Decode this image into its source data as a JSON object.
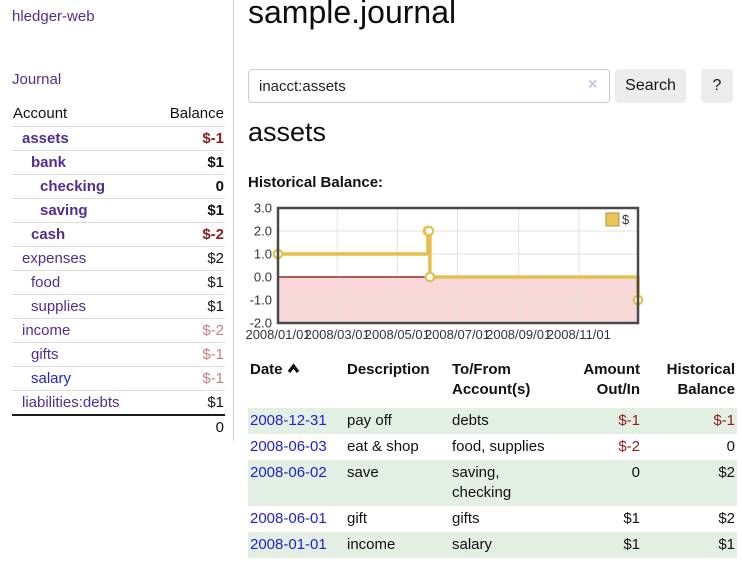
{
  "sidebar": {
    "app_title": "hledger-web",
    "journal_link": "Journal",
    "tree": {
      "account_header": "Account",
      "balance_header": "Balance",
      "accounts": [
        {
          "name": "assets",
          "indent": 1,
          "bold": true,
          "balance": "$-1",
          "balance_color": "neg"
        },
        {
          "name": "bank",
          "indent": 2,
          "bold": true,
          "balance": "$1",
          "balance_color": "pos"
        },
        {
          "name": "checking",
          "indent": 3,
          "bold": true,
          "balance": "0",
          "balance_color": "pos"
        },
        {
          "name": "saving",
          "indent": 3,
          "bold": true,
          "balance": "$1",
          "balance_color": "pos"
        },
        {
          "name": "cash",
          "indent": 2,
          "bold": true,
          "balance": "$-2",
          "balance_color": "neg"
        },
        {
          "name": "expenses",
          "indent": 1,
          "bold": false,
          "balance": "$2",
          "balance_color": "pos"
        },
        {
          "name": "food",
          "indent": 2,
          "bold": false,
          "balance": "$1",
          "balance_color": "pos"
        },
        {
          "name": "supplies",
          "indent": 2,
          "bold": false,
          "balance": "$1",
          "balance_color": "pos"
        },
        {
          "name": "income",
          "indent": 1,
          "bold": false,
          "balance": "$-2",
          "balance_color": "neg_light"
        },
        {
          "name": "gifts",
          "indent": 2,
          "bold": false,
          "balance": "$-1",
          "balance_color": "neg_light"
        },
        {
          "name": "salary",
          "indent": 2,
          "bold": false,
          "balance": "$-1",
          "balance_color": "neg_light",
          "link_color": "blue"
        },
        {
          "name": "liabilities:debts",
          "indent": 1,
          "bold": false,
          "balance": "$1",
          "balance_color": "pos"
        }
      ],
      "total": "0"
    }
  },
  "main": {
    "title": "sample.journal",
    "search": {
      "value": "inacct:assets",
      "clear_icon": "×",
      "search_button": "Search",
      "help_button": "?"
    },
    "account_heading": "assets",
    "chart_label": "Historical Balance:"
  },
  "chart_data": {
    "type": "line",
    "title": "Historical Balance",
    "step": true,
    "legend": [
      {
        "label": "$",
        "color": "#e9c659",
        "position": "top-right"
      }
    ],
    "grid": true,
    "ylim": [
      -2,
      3
    ],
    "y_ticks": [
      "3.0",
      "2.0",
      "1.0",
      "0.0",
      "-1.0",
      "-2.0"
    ],
    "xlim_days": [
      0,
      365
    ],
    "x_ticks": [
      {
        "label": "2008/01/01",
        "day": 0
      },
      {
        "label": "2008/03/01",
        "day": 60
      },
      {
        "label": "2008/05/01",
        "day": 121
      },
      {
        "label": "2008/07/01",
        "day": 182
      },
      {
        "label": "2008/09/01",
        "day": 244
      },
      {
        "label": "2008/11/01",
        "day": 305
      }
    ],
    "series": [
      {
        "name": "$",
        "points": [
          {
            "date": "2008-01-01",
            "day": 0,
            "value": 1
          },
          {
            "date": "2008-06-01",
            "day": 152,
            "value": 2
          },
          {
            "date": "2008-06-02",
            "day": 153,
            "value": 2
          },
          {
            "date": "2008-06-03",
            "day": 154,
            "value": 0
          },
          {
            "date": "2008-12-31",
            "day": 365,
            "value": -1
          }
        ]
      }
    ],
    "colors": {
      "line": "#e5bf4d",
      "marker_fill": "#ffffff",
      "negative_region": "#f8d8d8",
      "zero_line": "#8b0000",
      "grid": "#e2e2e2",
      "border": "#4a4a4a",
      "tick_text": "#333333",
      "legend_swatch_border": "#b5913a"
    }
  },
  "register": {
    "headers": {
      "date": "Date",
      "date_sort": "asc",
      "description": "Description",
      "accounts_line1": "To/From",
      "accounts_line2": "Account(s)",
      "amount_line1": "Amount",
      "amount_line2": "Out/In",
      "balance_line1": "Historical",
      "balance_line2": "Balance"
    },
    "rows": [
      {
        "date": "2008-12-31",
        "description": "pay off",
        "accounts": "debts",
        "amount": "$-1",
        "amount_negative": true,
        "balance": "$-1",
        "balance_negative": true
      },
      {
        "date": "2008-06-03",
        "description": "eat & shop",
        "accounts": "food, supplies",
        "amount": "$-2",
        "amount_negative": true,
        "balance": "0",
        "balance_negative": false
      },
      {
        "date": "2008-06-02",
        "description": "save",
        "accounts": "saving, checking",
        "amount": "0",
        "amount_negative": false,
        "balance": "$2",
        "balance_negative": false
      },
      {
        "date": "2008-06-01",
        "description": "gift",
        "accounts": "gifts",
        "amount": "$1",
        "amount_negative": false,
        "balance": "$2",
        "balance_negative": false
      },
      {
        "date": "2008-01-01",
        "description": "income",
        "accounts": "salary",
        "amount": "$1",
        "amount_negative": false,
        "balance": "$1",
        "balance_negative": false
      }
    ]
  },
  "colors": {
    "link_purple": "#522d91",
    "link_blue": "#2222cc",
    "negative_dark": "#8f1d1d",
    "negative_light": "#c87e7e",
    "row_shade_green": "#e3efe3"
  }
}
